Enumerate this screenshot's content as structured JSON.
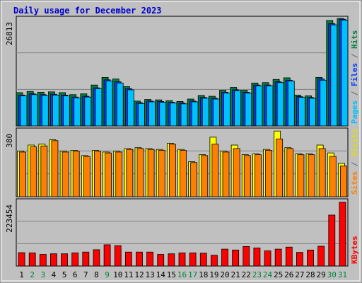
{
  "chart_data": {
    "type": "bar",
    "title": "Daily usage for December 2023",
    "categories": [
      "1",
      "2",
      "3",
      "4",
      "5",
      "6",
      "7",
      "8",
      "9",
      "10",
      "11",
      "12",
      "13",
      "14",
      "15",
      "16",
      "17",
      "18",
      "19",
      "20",
      "21",
      "22",
      "23",
      "24",
      "25",
      "26",
      "27",
      "28",
      "29",
      "30",
      "31"
    ],
    "weekend_days": [
      "2",
      "3",
      "9",
      "16",
      "17",
      "23",
      "24",
      "30",
      "31"
    ],
    "panels": [
      {
        "y_max_label": "26813",
        "ylim": [
          0,
          26813
        ],
        "series": [
          {
            "name": "Hits",
            "color": "#008040",
            "values": [
              8300,
              8600,
              8400,
              8500,
              8300,
              7800,
              8000,
              10200,
              12100,
              11700,
              9800,
              6200,
              6600,
              6500,
              6300,
              6100,
              6700,
              7600,
              7400,
              8900,
              9600,
              8900,
              10700,
              10800,
              11600,
              12000,
              7700,
              7500,
              12100,
              26300,
              26800
            ]
          },
          {
            "name": "Files",
            "color": "#0040ff",
            "values": [
              7700,
              8000,
              7800,
              7900,
              7700,
              7200,
              7400,
              9500,
              11500,
              11000,
              9300,
              5800,
              6200,
              6100,
              5900,
              5700,
              6200,
              7100,
              6900,
              8400,
              9000,
              8400,
              10200,
              10200,
              11000,
              11400,
              7300,
              7100,
              11700,
              25500,
              26600
            ]
          },
          {
            "name": "Pages",
            "color": "#00c0ff",
            "values": [
              7500,
              7800,
              7600,
              7700,
              7500,
              7000,
              7200,
              9300,
              11200,
              10700,
              9000,
              5600,
              6000,
              5900,
              5700,
              5500,
              6000,
              6900,
              6700,
              8200,
              8800,
              8200,
              10000,
              10000,
              10800,
              11200,
              7100,
              6900,
              11400,
              25200,
              26400
            ]
          }
        ]
      },
      {
        "y_max_label": "380",
        "ylim": [
          0,
          380
        ],
        "series": [
          {
            "name": "Visits",
            "color": "#ffff00",
            "values": [
              260,
              295,
              300,
              325,
              260,
              265,
              235,
              265,
              255,
              260,
              275,
              280,
              275,
              270,
              305,
              270,
              200,
              240,
              340,
              260,
              295,
              240,
              245,
              270,
              375,
              280,
              245,
              245,
              295,
              250,
              190
            ]
          },
          {
            "name": "Sites",
            "color": "#ff8000",
            "values": [
              255,
              285,
              290,
              320,
              255,
              260,
              230,
              260,
              250,
              255,
              270,
              275,
              270,
              265,
              300,
              265,
              195,
              235,
              300,
              255,
              275,
              235,
              240,
              265,
              330,
              275,
              240,
              240,
              275,
              230,
              175
            ]
          }
        ]
      },
      {
        "y_max_label": "223454",
        "ylim": [
          0,
          223454
        ],
        "series": [
          {
            "name": "KBytes",
            "color": "#ff0000",
            "values": [
              46000,
              45000,
              40000,
              42000,
              42000,
              45000,
              48000,
              56000,
              73000,
              70000,
              48000,
              48000,
              48000,
              40000,
              42000,
              45000,
              45000,
              44000,
              37000,
              58000,
              55000,
              67000,
              62000,
              52000,
              58000,
              65000,
              47000,
              55000,
              68000,
              175000,
              219000
            ]
          }
        ]
      }
    ],
    "right_labels": [
      {
        "text": "Pages",
        "color": "#00c0ff"
      },
      {
        "text": " / ",
        "color": "#666666"
      },
      {
        "text": "Files",
        "color": "#0040ff"
      },
      {
        "text": " / ",
        "color": "#666666"
      },
      {
        "text": "Hits",
        "color": "#008040"
      }
    ],
    "right_labels_2": [
      {
        "text": "Sites",
        "color": "#ff8000"
      },
      {
        "text": " / ",
        "color": "#666666"
      },
      {
        "text": "Visits",
        "color": "#e0e000"
      }
    ],
    "right_labels_3": [
      {
        "text": "KBytes",
        "color": "#ff0000"
      }
    ]
  }
}
